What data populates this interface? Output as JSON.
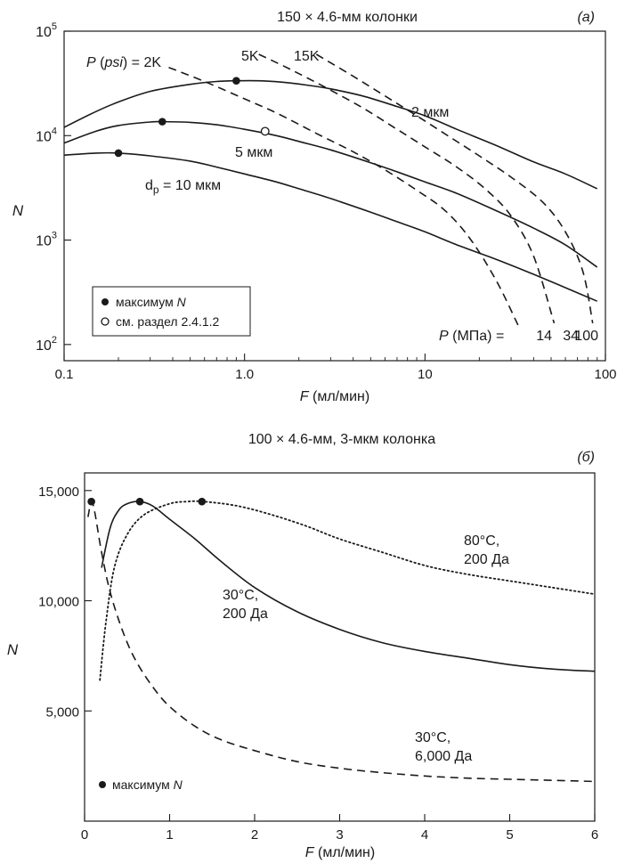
{
  "chart_data": [
    {
      "type": "line",
      "title": "150 × 4.6-мм колонки",
      "panel_label": "(a)",
      "xlabel_var": "F",
      "xlabel_unit": " (мл/мин)",
      "ylabel": "N",
      "xscale": "log",
      "yscale": "log",
      "xlim": [
        0.1,
        100
      ],
      "ylim": [
        70,
        100000
      ],
      "x_ticks": [
        {
          "value": 0.1,
          "label": "0.1"
        },
        {
          "value": 1,
          "label": "1.0"
        },
        {
          "value": 10,
          "label": "10"
        },
        {
          "value": 100,
          "label": "100"
        }
      ],
      "y_ticks": [
        {
          "value": 100,
          "base": "10",
          "exp": "2"
        },
        {
          "value": 1000,
          "base": "10",
          "exp": "3"
        },
        {
          "value": 10000,
          "base": "10",
          "exp": "4"
        },
        {
          "value": 100000,
          "base": "10",
          "exp": "5"
        }
      ],
      "series": [
        {
          "name": "2 мкм",
          "style": "solid",
          "x": [
            0.1,
            0.15,
            0.2,
            0.3,
            0.5,
            0.7,
            0.9,
            1.2,
            1.6,
            2.2,
            3,
            4.5,
            7,
            10,
            15,
            25,
            40,
            60,
            90
          ],
          "y": [
            12000,
            17000,
            21000,
            26500,
            31000,
            33000,
            33500,
            33500,
            32500,
            30500,
            28000,
            24000,
            19000,
            15500,
            11500,
            8000,
            5600,
            4300,
            3100
          ]
        },
        {
          "name": "5 мкм",
          "style": "solid",
          "x": [
            0.1,
            0.15,
            0.2,
            0.3,
            0.35,
            0.5,
            0.7,
            1,
            1.5,
            2,
            3,
            5,
            7,
            10,
            15,
            25,
            40,
            60,
            90
          ],
          "y": [
            8500,
            11000,
            12500,
            13500,
            13600,
            13400,
            12700,
            11500,
            10000,
            8800,
            7300,
            5500,
            4500,
            3600,
            2800,
            1900,
            1300,
            900,
            550
          ]
        },
        {
          "name": "dp = 10 мкм",
          "style": "solid",
          "x": [
            0.1,
            0.15,
            0.2,
            0.3,
            0.5,
            0.7,
            1,
            1.5,
            2,
            3,
            5,
            7,
            10,
            15,
            25,
            40,
            60,
            90
          ],
          "y": [
            6500,
            6800,
            6800,
            6400,
            5700,
            5000,
            4300,
            3600,
            3100,
            2500,
            1850,
            1500,
            1200,
            900,
            650,
            470,
            350,
            260
          ]
        },
        {
          "name": "2K",
          "style": "dashed",
          "x": [
            0.38,
            0.6,
            1,
            1.5,
            2.5,
            4,
            6,
            9,
            13,
            18,
            25,
            33
          ],
          "y": [
            45000,
            33000,
            22500,
            16500,
            10500,
            7000,
            4700,
            3000,
            1900,
            1000,
            400,
            150
          ]
        },
        {
          "name": "5K",
          "style": "dashed",
          "x": [
            1.2,
            1.8,
            2.8,
            4.5,
            7,
            10,
            15,
            22,
            30,
            40,
            52
          ],
          "y": [
            60000,
            43000,
            29000,
            18500,
            11500,
            7800,
            5000,
            3000,
            1700,
            700,
            160
          ]
        },
        {
          "name": "15K",
          "style": "dashed",
          "x": [
            2.5,
            4,
            6,
            9,
            14,
            20,
            30,
            45,
            60,
            75,
            85
          ],
          "y": [
            60000,
            37000,
            24000,
            15500,
            9500,
            6400,
            4000,
            2300,
            1200,
            500,
            160
          ]
        }
      ],
      "max_points": [
        {
          "x": 0.2,
          "y": 6800
        },
        {
          "x": 0.35,
          "y": 13600
        },
        {
          "x": 0.9,
          "y": 33500
        }
      ],
      "open_points": [
        {
          "x": 1.3,
          "y": 11000
        }
      ],
      "annotations": {
        "p_psi_var": "P",
        "p_psi_paren": " (",
        "p_psi_unit": "psi",
        "p_psi_rest": ") = 2K",
        "p_5k": "5K",
        "p_15k": "15K",
        "lbl_2um": "2 мкм",
        "lbl_5um": "5 мкм",
        "lbl_10um_pre": "d",
        "lbl_10um_sub": "p",
        "lbl_10um_post": " = 10 мкм",
        "p_mpa_var": "P",
        "p_mpa_rest": " (МПа) =",
        "p_14": "14",
        "p_34": "34",
        "p_100": "100"
      },
      "legend": {
        "placement": "bottom-left",
        "entries": [
          {
            "marker": "filled",
            "text_pre": "максимум ",
            "text_var": "N"
          },
          {
            "marker": "open",
            "text_pre": "см. раздел 2.4.1.2",
            "text_var": ""
          }
        ]
      }
    },
    {
      "type": "line",
      "title": "100 × 4.6-мм, 3-мкм колонка",
      "panel_label": "(б)",
      "xlabel_var": "F",
      "xlabel_unit": " (мл/мин)",
      "ylabel": "N",
      "xscale": "linear",
      "yscale": "linear",
      "xlim": [
        0,
        6
      ],
      "ylim": [
        0,
        15800
      ],
      "x_ticks": [
        {
          "value": 0,
          "label": "0"
        },
        {
          "value": 1,
          "label": "1"
        },
        {
          "value": 2,
          "label": "2"
        },
        {
          "value": 3,
          "label": "3"
        },
        {
          "value": 4,
          "label": "4"
        },
        {
          "value": 5,
          "label": "5"
        },
        {
          "value": 6,
          "label": "6"
        }
      ],
      "y_ticks": [
        {
          "value": 5000,
          "label": "5,000"
        },
        {
          "value": 10000,
          "label": "10,000"
        },
        {
          "value": 15000,
          "label": "15,000"
        }
      ],
      "series": [
        {
          "name": "30°C, 200 Да",
          "style": "solid",
          "x": [
            0.2,
            0.3,
            0.4,
            0.5,
            0.65,
            0.8,
            1,
            1.3,
            1.6,
            2,
            2.5,
            3,
            3.5,
            4,
            4.5,
            5,
            5.5,
            6
          ],
          "y": [
            11500,
            13300,
            14100,
            14400,
            14500,
            14300,
            13700,
            12800,
            11800,
            10600,
            9500,
            8700,
            8100,
            7700,
            7400,
            7100,
            6900,
            6800
          ]
        },
        {
          "name": "80°C, 200 Да",
          "style": "dotted",
          "x": [
            0.18,
            0.25,
            0.35,
            0.5,
            0.7,
            1,
            1.2,
            1.4,
            1.8,
            2.2,
            2.6,
            3,
            3.5,
            4,
            4.5,
            5,
            5.5,
            6
          ],
          "y": [
            6400,
            9000,
            11500,
            13000,
            13900,
            14400,
            14500,
            14500,
            14300,
            13900,
            13400,
            12800,
            12200,
            11600,
            11200,
            10900,
            10600,
            10300
          ]
        },
        {
          "name": "30°C, 6,000 Да",
          "style": "dashed",
          "x": [
            0.04,
            0.08,
            0.12,
            0.2,
            0.3,
            0.45,
            0.6,
            0.8,
            1,
            1.3,
            1.6,
            2,
            2.5,
            3,
            3.5,
            4,
            4.5,
            5,
            5.5,
            6
          ],
          "y": [
            13800,
            14500,
            14000,
            12200,
            10400,
            8600,
            7300,
            6100,
            5200,
            4300,
            3700,
            3200,
            2700,
            2400,
            2200,
            2050,
            1950,
            1900,
            1850,
            1800
          ]
        }
      ],
      "max_points": [
        {
          "x": 0.08,
          "y": 14500
        },
        {
          "x": 0.65,
          "y": 14500
        },
        {
          "x": 1.38,
          "y": 14500
        }
      ],
      "annotations": {
        "lbl_80_l1": "80°C,",
        "lbl_80_l2": "200 Да",
        "lbl_30_l1": "30°C,",
        "lbl_30_l2": "200 Да",
        "lbl_6000_l1": "30°C,",
        "lbl_6000_l2": "6,000 Да"
      },
      "legend": {
        "placement": "bottom-left",
        "entries": [
          {
            "marker": "filled",
            "text_pre": "максимум ",
            "text_var": "N"
          }
        ]
      }
    }
  ]
}
